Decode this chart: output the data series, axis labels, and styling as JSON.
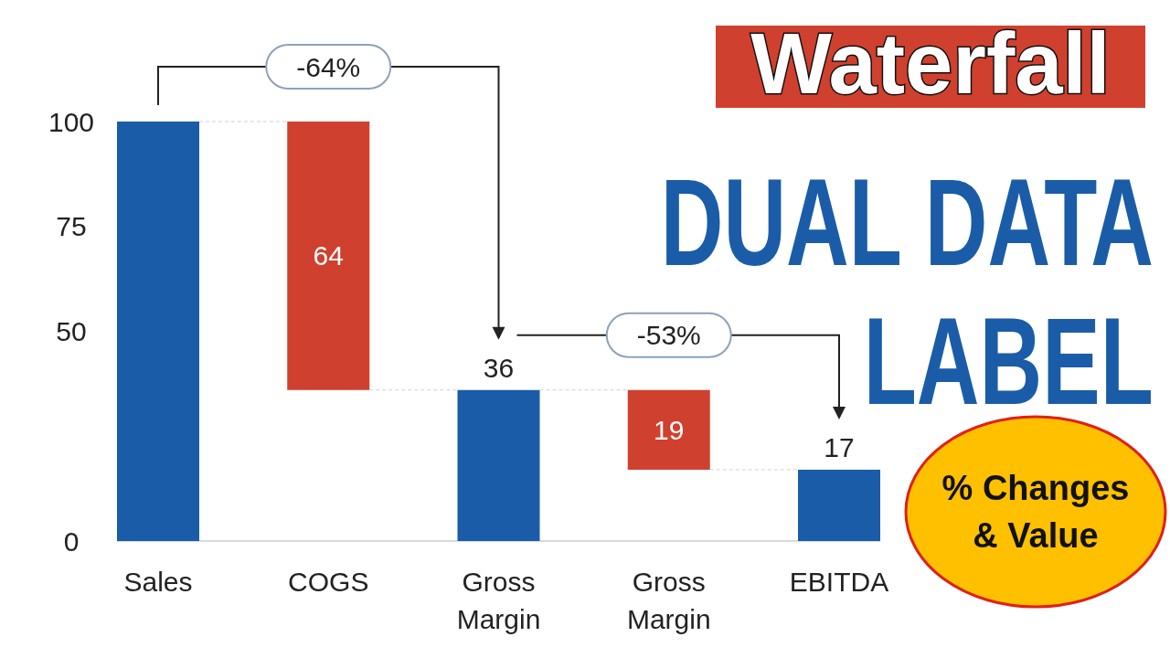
{
  "chart_data": {
    "type": "bar",
    "title": "Waterfall",
    "subtitle": "DUAL DATA LABEL",
    "categories": [
      "Sales",
      "COGS",
      "Gross Margin",
      "Gross Margin",
      "EBITDA"
    ],
    "values": [
      100,
      64,
      36,
      19,
      17
    ],
    "base": [
      0,
      36,
      0,
      17,
      0
    ],
    "colors": [
      "#1b5ca8",
      "#d0402e",
      "#1b5ca8",
      "#d0402e",
      "#1b5ca8"
    ],
    "value_labels": [
      null,
      "64",
      "36",
      "19",
      "17"
    ],
    "ylim": [
      0,
      100
    ],
    "yticks": [
      0,
      50,
      75,
      100
    ],
    "annotations": [
      "-64%",
      "-53%",
      "% Changes & Value"
    ]
  }
}
